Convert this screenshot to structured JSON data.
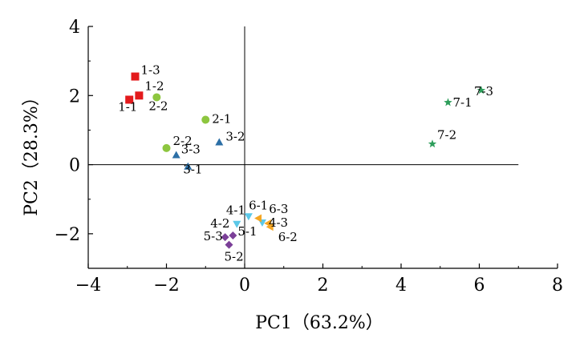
{
  "chart_data": {
    "type": "scatter",
    "xlabel": "PC1（63.2%）",
    "ylabel": "PC2（28.3%）",
    "xlim": [
      -4,
      8
    ],
    "ylim": [
      -3,
      4
    ],
    "xticks": [
      "−4",
      "−2",
      "0",
      "2",
      "4",
      "6",
      "8"
    ],
    "yticks": [
      "−2",
      "0",
      "2",
      "4"
    ],
    "grid": false,
    "legend": "none",
    "series": [
      {
        "marker": "square",
        "color": "#e31a1c",
        "points": [
          {
            "x": -2.95,
            "y": 1.88,
            "label": "1-1"
          },
          {
            "x": -2.7,
            "y": 2.0,
            "label": "1-2"
          },
          {
            "x": -2.8,
            "y": 2.55,
            "label": "1-3"
          }
        ]
      },
      {
        "marker": "circle",
        "color": "#8dc63f",
        "points": [
          {
            "x": -1.0,
            "y": 1.3,
            "label": "2-1"
          },
          {
            "x": -2.25,
            "y": 1.95,
            "label": "2-2"
          },
          {
            "x": -2.0,
            "y": 0.48,
            "label": "2-2"
          }
        ]
      },
      {
        "marker": "triangle-up",
        "color": "#2c6fa6",
        "points": [
          {
            "x": -1.45,
            "y": -0.05,
            "label": "3-1"
          },
          {
            "x": -0.65,
            "y": 0.65,
            "label": "3-2"
          },
          {
            "x": -1.75,
            "y": 0.28,
            "label": "3-3"
          }
        ]
      },
      {
        "marker": "triangle-down",
        "color": "#5bc8e8",
        "points": [
          {
            "x": 0.1,
            "y": -1.5,
            "label": "4-1"
          },
          {
            "x": -0.2,
            "y": -1.72,
            "label": "4-2"
          },
          {
            "x": 0.45,
            "y": -1.68,
            "label": "4-3"
          }
        ]
      },
      {
        "marker": "diamond",
        "color": "#7b3f98",
        "points": [
          {
            "x": -0.3,
            "y": -2.05,
            "label": "5-1"
          },
          {
            "x": -0.4,
            "y": -2.32,
            "label": "5-2"
          },
          {
            "x": -0.5,
            "y": -2.1,
            "label": "5-3"
          }
        ]
      },
      {
        "marker": "triangle-left",
        "color": "#f5a623",
        "points": [
          {
            "x": 0.35,
            "y": -1.55,
            "label": "6-1"
          },
          {
            "x": 0.65,
            "y": -1.8,
            "label": "6-2"
          },
          {
            "x": 0.6,
            "y": -1.7,
            "label": "6-3"
          }
        ]
      },
      {
        "marker": "star",
        "color": "#2e9e5b",
        "points": [
          {
            "x": 5.2,
            "y": 1.8,
            "label": "7-1"
          },
          {
            "x": 4.8,
            "y": 0.6,
            "label": "7-2"
          },
          {
            "x": 6.05,
            "y": 2.15,
            "label": "7-3"
          }
        ]
      }
    ]
  }
}
